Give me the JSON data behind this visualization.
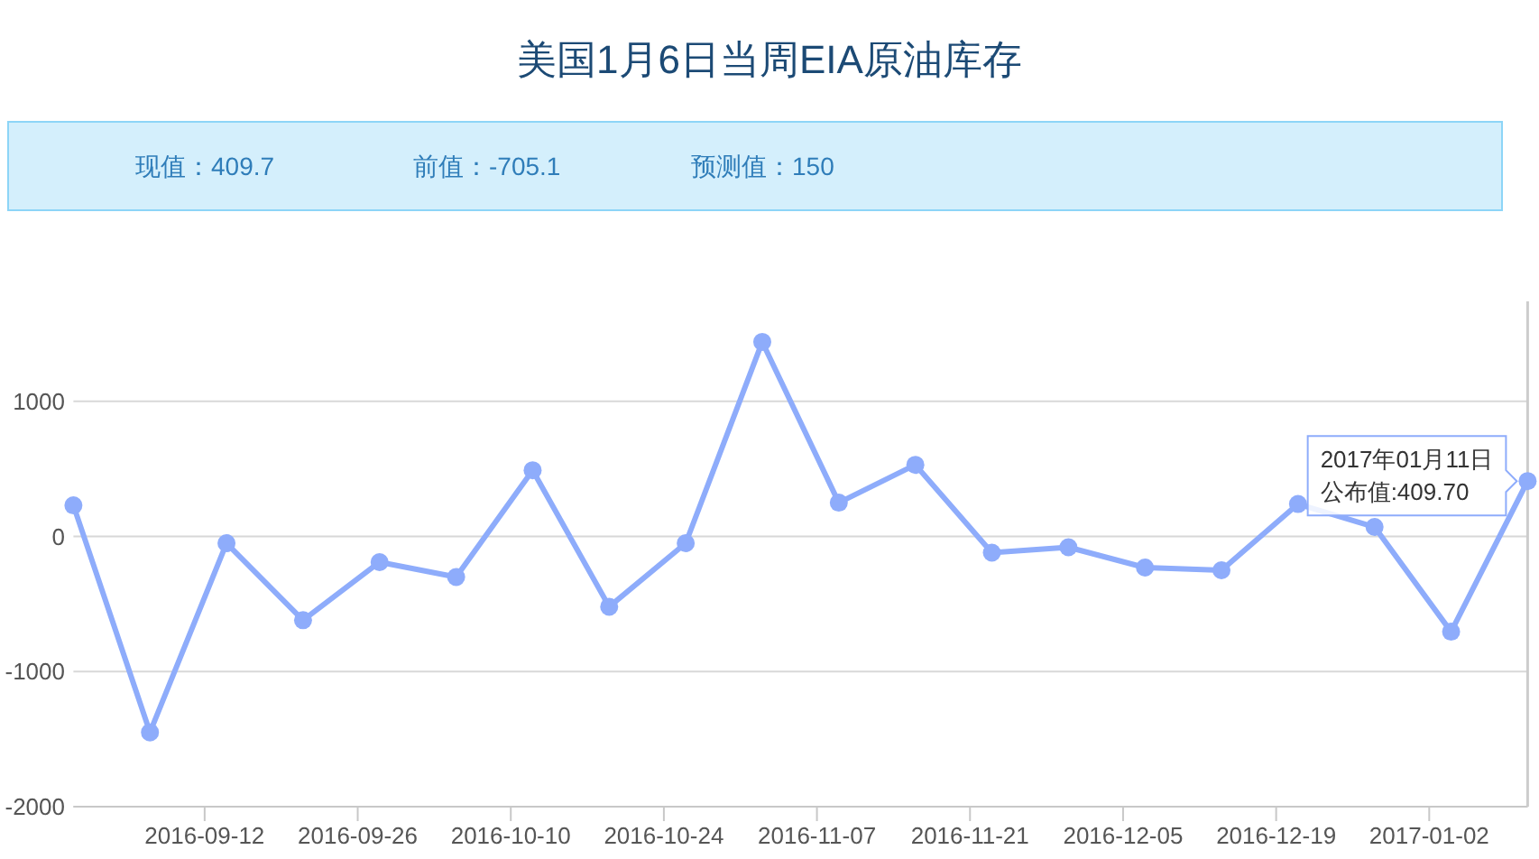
{
  "chart_data": {
    "type": "line",
    "title": "美国1月6日当周EIA原油库存",
    "annotations": [
      "现值：409.7",
      "前值：-705.1",
      "预测值：150",
      {
        "text": "2017年01月11日",
        "x": "2017-01-11",
        "y": 409.7
      },
      {
        "text": "公布值:409.70",
        "x": "2017-01-11",
        "y": 409.7
      }
    ],
    "x": [
      "2016-08-31",
      "2016-09-07",
      "2016-09-14",
      "2016-09-21",
      "2016-09-28",
      "2016-10-05",
      "2016-10-12",
      "2016-10-19",
      "2016-10-26",
      "2016-11-02",
      "2016-11-09",
      "2016-11-16",
      "2016-11-23",
      "2016-11-30",
      "2016-12-07",
      "2016-12-14",
      "2016-12-21",
      "2016-12-28",
      "2017-01-04",
      "2017-01-11"
    ],
    "series": [
      {
        "color": "#8eacfb",
        "values": [
          230,
          -1450,
          -50,
          -620,
          -190,
          -300,
          490,
          -520,
          -50,
          1440,
          250,
          530,
          -120,
          -80,
          -230,
          -250,
          240,
          70,
          -705.1,
          409.7
        ]
      }
    ],
    "xlim": [
      "2016-08-31",
      "2017-01-11"
    ],
    "xticks": [
      "2016-09-12",
      "2016-09-26",
      "2016-10-10",
      "2016-10-24",
      "2016-11-07",
      "2016-11-21",
      "2016-12-05",
      "2016-12-19",
      "2017-01-02"
    ],
    "ylim": [
      -2000,
      1740
    ],
    "yticks": [
      -2000,
      -1000,
      0,
      1000
    ],
    "ref_lines": [
      {
        "axis": "x",
        "value": "2017-01-11",
        "color": "#cccccc"
      }
    ],
    "grid": "y",
    "marker": "circle",
    "line_style": "solid"
  }
}
